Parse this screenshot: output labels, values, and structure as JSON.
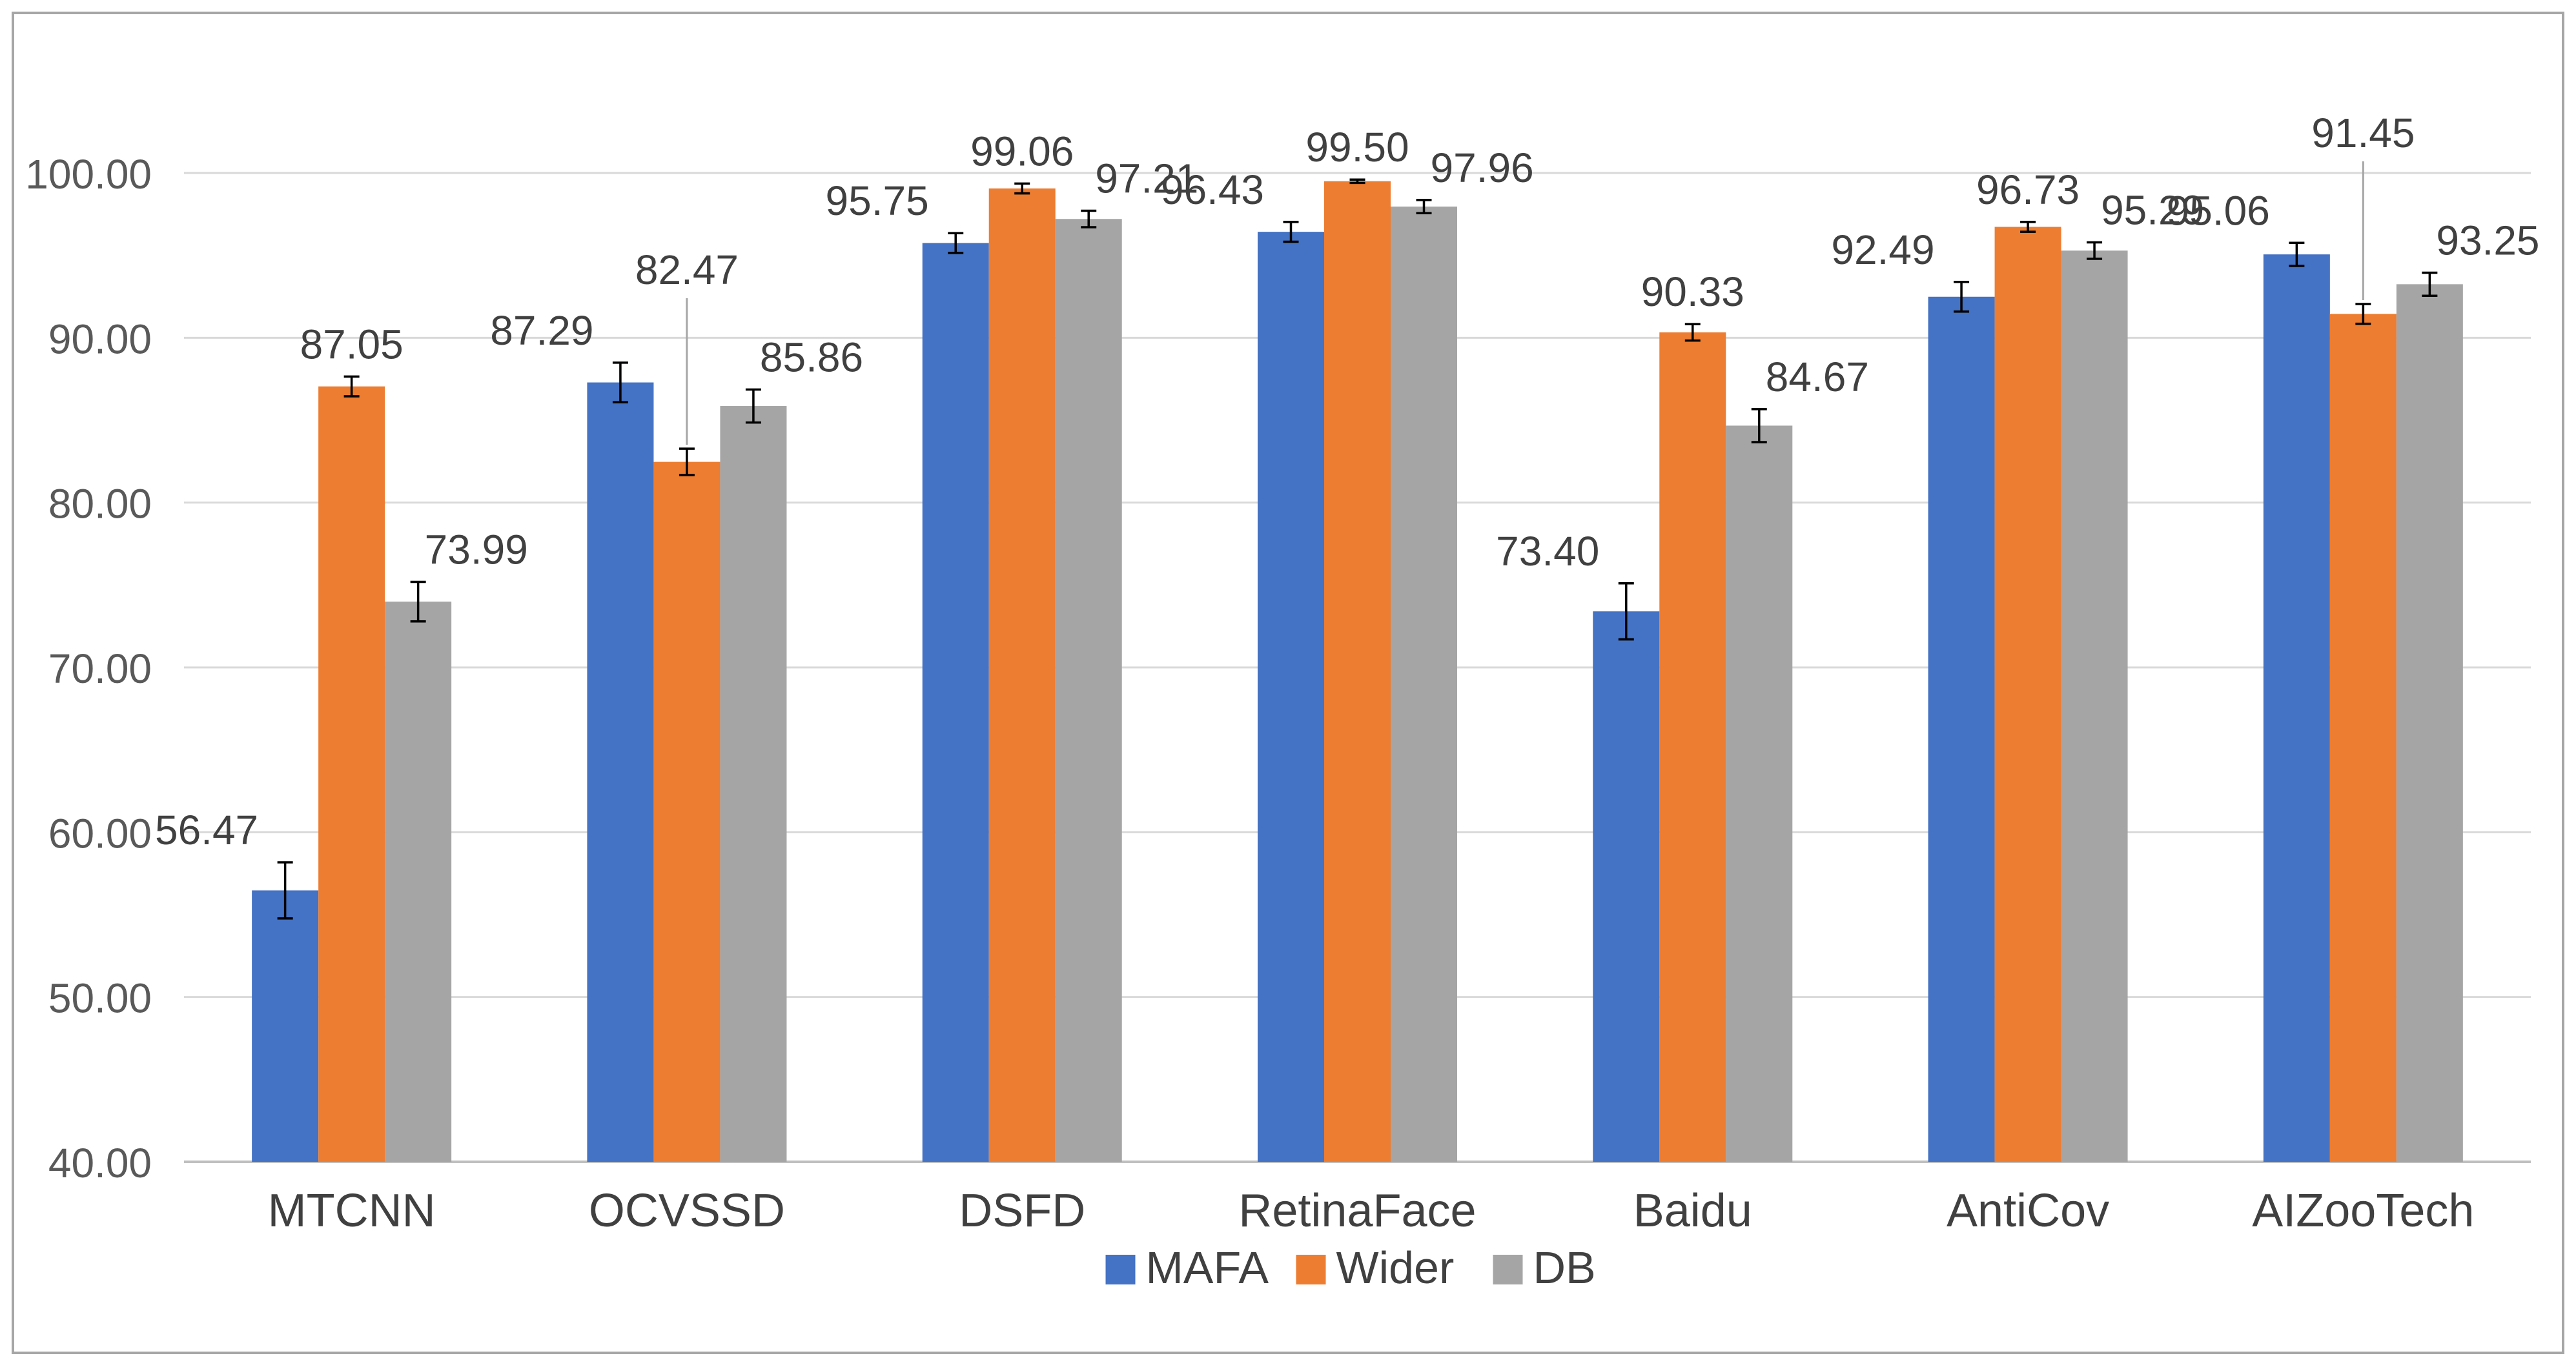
{
  "chart_data": {
    "type": "bar",
    "title": "",
    "xlabel": "",
    "ylabel": "",
    "ylim": [
      40,
      100
    ],
    "yticks": [
      "40.00",
      "50.00",
      "60.00",
      "70.00",
      "80.00",
      "90.00",
      "100.00"
    ],
    "grid": true,
    "legend_position": "bottom-center",
    "categories": [
      "MTCNN",
      "OCVSSD",
      "DSFD",
      "RetinaFace",
      "Baidu",
      "AntiCov",
      "AIZooTech"
    ],
    "series": [
      {
        "name": "MAFA",
        "color": "#4472C4",
        "values": [
          56.47,
          87.29,
          95.75,
          96.43,
          73.4,
          92.49,
          95.06
        ],
        "labels": [
          "56.47",
          "87.29",
          "95.75",
          "96.43",
          "73.40",
          "92.49",
          "95.06"
        ],
        "error": [
          1.7,
          1.2,
          0.6,
          0.6,
          1.7,
          0.9,
          0.7
        ]
      },
      {
        "name": "Wider",
        "color": "#ED7D31",
        "values": [
          87.05,
          82.47,
          99.06,
          99.5,
          90.33,
          96.73,
          91.45
        ],
        "labels": [
          "87.05",
          "82.47",
          "99.06",
          "99.50",
          "90.33",
          "96.73",
          "91.45"
        ],
        "error": [
          0.6,
          0.8,
          0.3,
          0.1,
          0.5,
          0.3,
          0.6
        ]
      },
      {
        "name": "DB",
        "color": "#A5A5A5",
        "values": [
          73.99,
          85.86,
          97.21,
          97.96,
          84.67,
          95.29,
          93.25
        ],
        "labels": [
          "73.99",
          "85.86",
          "97.21",
          "97.96",
          "84.67",
          "95.29",
          "93.25"
        ],
        "error": [
          1.2,
          1.0,
          0.5,
          0.4,
          1.0,
          0.5,
          0.7
        ]
      }
    ]
  }
}
